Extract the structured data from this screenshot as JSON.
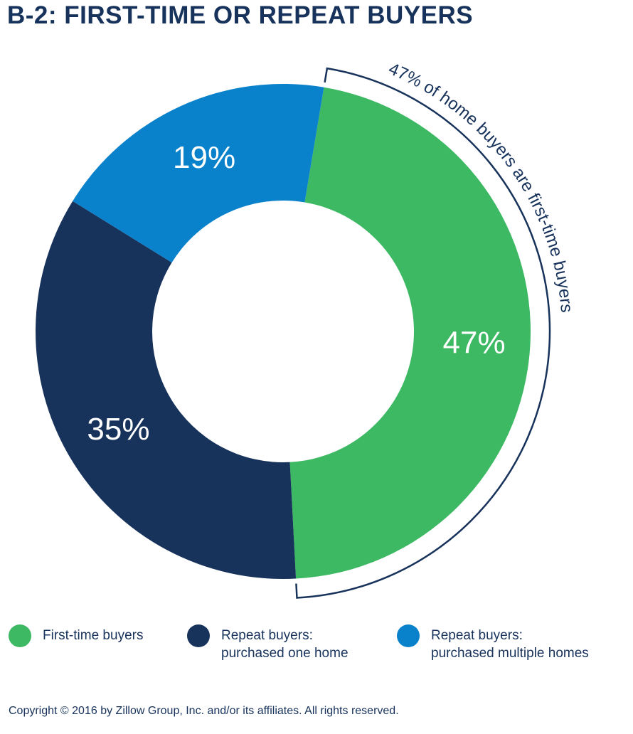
{
  "title": "B-2: FIRST-TIME OR REPEAT BUYERS",
  "callout": "47% of home buyers are first-time buyers",
  "copyright": "Copyright © 2016 by Zillow Group, Inc. and/or its affiliates. All rights reserved.",
  "chart_data": {
    "type": "pie",
    "donut": true,
    "categories": [
      "First-time buyers",
      "Repeat buyers: purchased one home",
      "Repeat buyers: purchased multiple homes"
    ],
    "values": [
      47,
      35,
      19
    ],
    "value_labels": [
      "47%",
      "35%",
      "19%"
    ],
    "colors": [
      "#3db863",
      "#17325b",
      "#0a82cb"
    ],
    "legend_placement": "bottom",
    "legend": [
      {
        "line1": "First-time buyers",
        "line2": "",
        "color": "#3db863"
      },
      {
        "line1": "Repeat buyers:",
        "line2": "purchased one home",
        "color": "#17325b"
      },
      {
        "line1": "Repeat buyers:",
        "line2": "purchased multiple homes",
        "color": "#0a82cb"
      }
    ]
  }
}
